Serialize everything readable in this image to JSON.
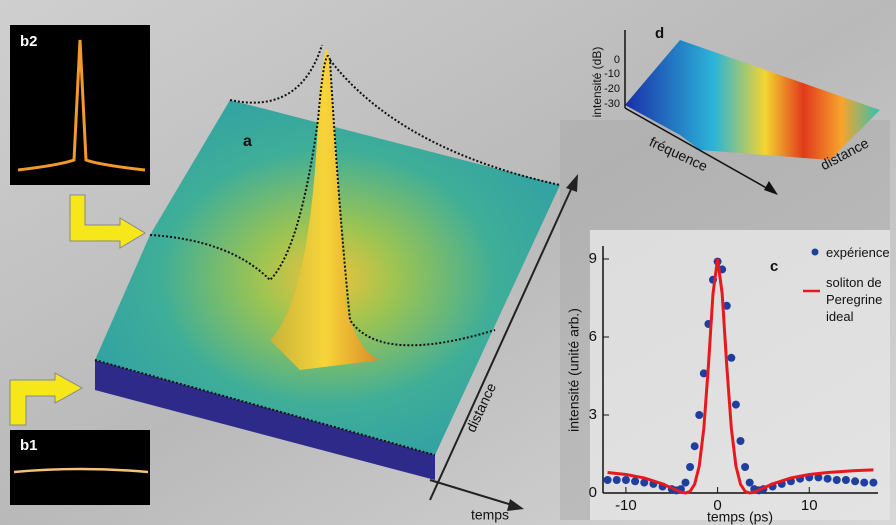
{
  "chart_data": {
    "type": "line",
    "panel_label": "c",
    "x_label": "temps (ps)",
    "y_label": "intensité  (unité arb.)",
    "xlim": [
      -12.5,
      17.5
    ],
    "ylim": [
      0,
      9.5
    ],
    "xticks": [
      -10,
      0,
      10
    ],
    "yticks": [
      0,
      3,
      6,
      9
    ],
    "series": [
      {
        "name": "expérience",
        "color": "#1f3f9f",
        "style": "markers",
        "x": [
          -12,
          -11,
          -10,
          -9,
          -8,
          -7,
          -6,
          -5,
          -4.5,
          -4,
          -3.5,
          -3,
          -2.5,
          -2,
          -1.5,
          -1,
          -0.5,
          0,
          0.5,
          1,
          1.5,
          2,
          2.5,
          3,
          3.5,
          4,
          4.5,
          5,
          6,
          7,
          8,
          9,
          10,
          11,
          12,
          13,
          14,
          15,
          16,
          17
        ],
        "values": [
          0.5,
          0.5,
          0.5,
          0.45,
          0.4,
          0.35,
          0.25,
          0.15,
          0.1,
          0.15,
          0.4,
          1.0,
          1.8,
          3.0,
          4.6,
          6.5,
          8.2,
          8.9,
          8.6,
          7.2,
          5.2,
          3.4,
          2.0,
          1.0,
          0.4,
          0.15,
          0.1,
          0.15,
          0.25,
          0.35,
          0.45,
          0.55,
          0.6,
          0.6,
          0.55,
          0.5,
          0.5,
          0.45,
          0.4,
          0.4
        ]
      },
      {
        "name": "soliton de Peregrine ideal",
        "color": "#e8191e",
        "style": "line",
        "x": [
          -12,
          -10,
          -8,
          -6,
          -5,
          -4,
          -3.5,
          -3,
          -2.5,
          -2,
          -1.5,
          -1,
          -0.5,
          0,
          0.5,
          1,
          1.5,
          2,
          2.5,
          3,
          3.5,
          4,
          5,
          6,
          8,
          10,
          12,
          15,
          17
        ],
        "values": [
          0.79,
          0.71,
          0.58,
          0.35,
          0.19,
          0.035,
          0,
          0.061,
          0.34,
          1.04,
          2.49,
          4.9,
          7.67,
          9,
          7.67,
          4.9,
          2.49,
          1.04,
          0.34,
          0.061,
          0,
          0.035,
          0.19,
          0.35,
          0.58,
          0.71,
          0.79,
          0.86,
          0.89
        ]
      }
    ]
  },
  "panel_a": {
    "label": "a",
    "axis_distance": "distance",
    "axis_temps": "temps"
  },
  "panel_b1": {
    "label": "b1"
  },
  "panel_b2": {
    "label": "b2"
  },
  "panel_d": {
    "label": "d",
    "y_label": "intensité (dB)",
    "yticks": [
      "0",
      "-10",
      "-20",
      "-30"
    ],
    "axis_frequency": "fréquence",
    "axis_distance": "distance"
  }
}
